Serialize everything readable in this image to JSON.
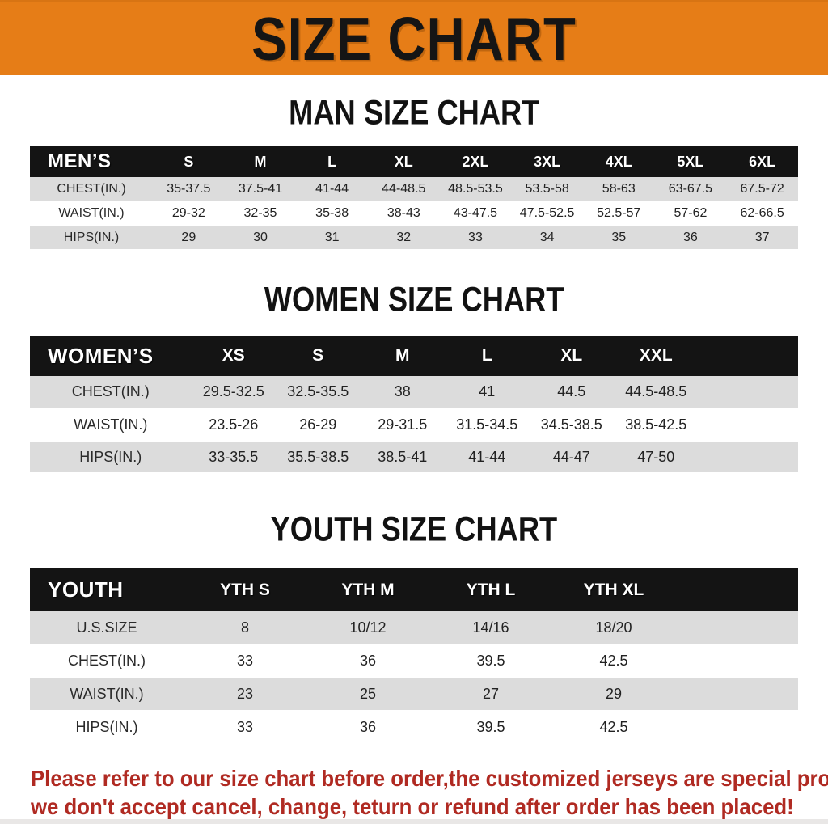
{
  "banner": {
    "title": "SIZE CHART",
    "bg_color": "#e67d17",
    "text_color": "#151515"
  },
  "sections": [
    {
      "heading": "MAN SIZE CHART",
      "table": {
        "label": "MEN’S",
        "columns": [
          "S",
          "M",
          "L",
          "XL",
          "2XL",
          "3XL",
          "4XL",
          "5XL",
          "6XL"
        ],
        "rows": [
          {
            "label": "CHEST(IN.)",
            "values": [
              "35-37.5",
              "37.5-41",
              "41-44",
              "44-48.5",
              "48.5-53.5",
              "53.5-58",
              "58-63",
              "63-67.5",
              "67.5-72"
            ]
          },
          {
            "label": "WAIST(IN.)",
            "values": [
              "29-32",
              "32-35",
              "35-38",
              "38-43",
              "43-47.5",
              "47.5-52.5",
              "52.5-57",
              "57-62",
              "62-66.5"
            ]
          },
          {
            "label": "HIPS(IN.)",
            "values": [
              "29",
              "30",
              "31",
              "32",
              "33",
              "34",
              "35",
              "36",
              "37"
            ]
          }
        ]
      }
    },
    {
      "heading": "WOMEN SIZE CHART",
      "table": {
        "label": "WOMEN’S",
        "columns": [
          "XS",
          "S",
          "M",
          "L",
          "XL",
          "XXL"
        ],
        "rows": [
          {
            "label": "CHEST(IN.)",
            "values": [
              "29.5-32.5",
              "32.5-35.5",
              "38",
              "41",
              "44.5",
              "44.5-48.5"
            ]
          },
          {
            "label": "WAIST(IN.)",
            "values": [
              "23.5-26",
              "26-29",
              "29-31.5",
              "31.5-34.5",
              "34.5-38.5",
              "38.5-42.5"
            ]
          },
          {
            "label": "HIPS(IN.)",
            "values": [
              "33-35.5",
              "35.5-38.5",
              "38.5-41",
              "41-44",
              "44-47",
              "47-50"
            ]
          }
        ]
      }
    },
    {
      "heading": "YOUTH SIZE CHART",
      "table": {
        "label": "YOUTH",
        "columns": [
          "YTH S",
          "YTH M",
          "YTH L",
          "YTH XL"
        ],
        "rows": [
          {
            "label": "U.S.SIZE",
            "values": [
              "8",
              "10/12",
              "14/16",
              "18/20"
            ]
          },
          {
            "label": "CHEST(IN.)",
            "values": [
              "33",
              "36",
              "39.5",
              "42.5"
            ]
          },
          {
            "label": "WAIST(IN.)",
            "values": [
              "23",
              "25",
              "27",
              "29"
            ]
          },
          {
            "label": "HIPS(IN.)",
            "values": [
              "33",
              "36",
              "39.5",
              "42.5"
            ]
          }
        ]
      }
    }
  ],
  "footer": {
    "line1": "Please refer to our size chart before order,the customized jerseys are special products,",
    "line2": "we don't accept cancel, change, teturn or refund after order has been placed!",
    "text_color": "#b02a22"
  },
  "colors": {
    "banner_bg": "#e67d17",
    "table_header_bar": "#141414",
    "row_stripe": "#dcdcdc",
    "footer_text": "#b02a22"
  }
}
